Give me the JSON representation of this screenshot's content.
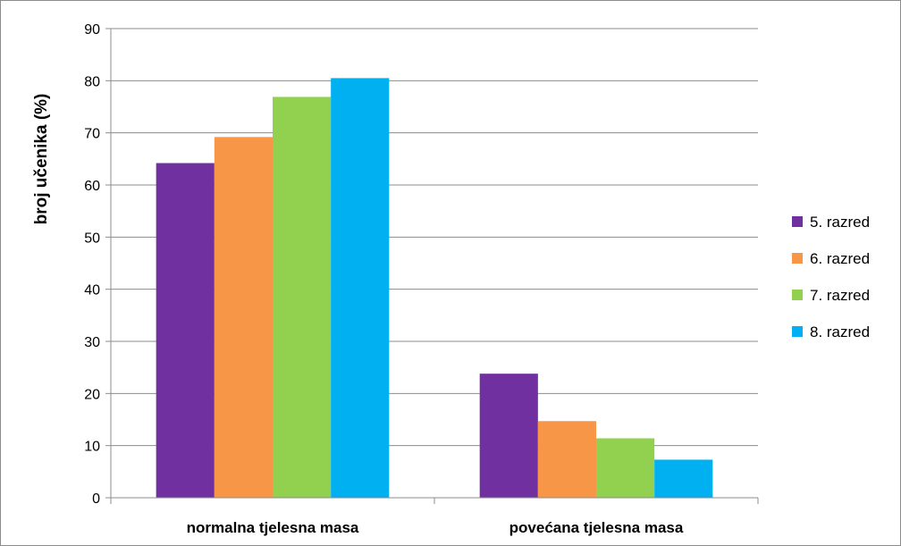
{
  "chart_data": {
    "type": "bar",
    "ylabel": "broj učenika (%)",
    "xlabel": "",
    "ylim": [
      0,
      90
    ],
    "yticks": [
      0,
      10,
      20,
      30,
      40,
      50,
      60,
      70,
      80,
      90
    ],
    "grid": true,
    "legend_position": "right",
    "categories": [
      "normalna tjelesna masa",
      "povećana tjelesna masa"
    ],
    "series": [
      {
        "name": "5. razred",
        "color": "#7030A0",
        "values": [
          64.2,
          23.8
        ]
      },
      {
        "name": "6. razred",
        "color": "#F79646",
        "values": [
          69.2,
          14.7
        ]
      },
      {
        "name": "7. razred",
        "color": "#92D050",
        "values": [
          76.9,
          11.4
        ]
      },
      {
        "name": "8. razred",
        "color": "#00B0F0",
        "values": [
          80.5,
          7.3
        ]
      }
    ]
  }
}
